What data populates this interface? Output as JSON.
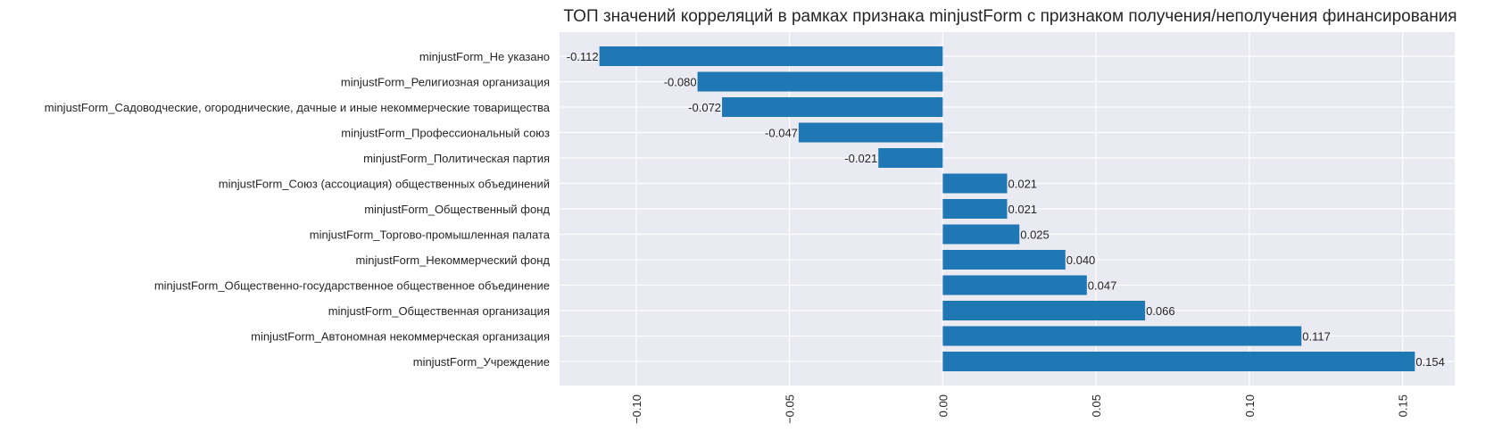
{
  "chart_data": {
    "type": "bar",
    "orientation": "horizontal",
    "title": "ТОП значений корреляций в рамках признака minjustForm с признаком получения/неполучения финансирования",
    "xlabel": "",
    "ylabel": "",
    "categories": [
      "minjustForm_Не указано",
      "minjustForm_Религиозная организация",
      "minjustForm_Садоводческие, огороднические, дачные и иные некоммерческие товарищества",
      "minjustForm_Профессиональный союз",
      "minjustForm_Политическая партия",
      "minjustForm_Союз (ассоциация) общественных объединений",
      "minjustForm_Общественный фонд",
      "minjustForm_Торгово-промышленная палата",
      "minjustForm_Некоммерческий фонд",
      "minjustForm_Общественно-государственное общественное объединение",
      "minjustForm_Общественная организация",
      "minjustForm_Автономная некоммерческая организация",
      "minjustForm_Учреждение"
    ],
    "values": [
      -0.112,
      -0.08,
      -0.072,
      -0.047,
      -0.021,
      0.021,
      0.021,
      0.025,
      0.04,
      0.047,
      0.066,
      0.117,
      0.154
    ],
    "value_labels": [
      "-0.112",
      "-0.080",
      "-0.072",
      "-0.047",
      "-0.021",
      "0.021",
      "0.021",
      "0.025",
      "0.040",
      "0.047",
      "0.066",
      "0.117",
      "0.154"
    ],
    "xticks": [
      -0.1,
      -0.05,
      0.0,
      0.05,
      0.1,
      0.15
    ],
    "xtick_labels": [
      "−0.10",
      "−0.05",
      "0.00",
      "0.05",
      "0.10",
      "0.15"
    ],
    "xlim": [
      -0.125,
      0.167
    ],
    "grid": true,
    "colors": {
      "bar": "#1f77b4",
      "background": "#eaeaf2",
      "grid": "#ffffff",
      "text": "#262626"
    }
  }
}
